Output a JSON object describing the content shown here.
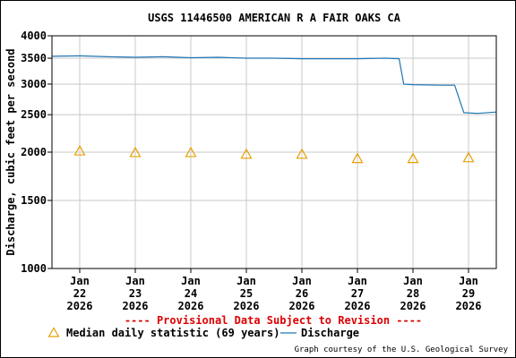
{
  "chart_data": {
    "type": "line",
    "title": "USGS 11446500 AMERICAN R A FAIR OAKS CA",
    "ylabel": "Discharge, cubic feet per second",
    "xlabel": "",
    "yscale": "log",
    "ylim": [
      1000,
      4000
    ],
    "y_ticks": [
      1000,
      1500,
      2000,
      2500,
      3000,
      3500,
      4000
    ],
    "y_tick_labels": [
      "1000",
      "1500",
      "2000",
      "2500",
      "3000",
      "3500",
      "4000"
    ],
    "x_range": [
      "2026-01-21T12:00",
      "2026-01-29T12:00"
    ],
    "x_ticks": [
      {
        "month": "Jan",
        "day": "22",
        "year": "2026"
      },
      {
        "month": "Jan",
        "day": "23",
        "year": "2026"
      },
      {
        "month": "Jan",
        "day": "24",
        "year": "2026"
      },
      {
        "month": "Jan",
        "day": "25",
        "year": "2026"
      },
      {
        "month": "Jan",
        "day": "26",
        "year": "2026"
      },
      {
        "month": "Jan",
        "day": "27",
        "year": "2026"
      },
      {
        "month": "Jan",
        "day": "28",
        "year": "2026"
      },
      {
        "month": "Jan",
        "day": "29",
        "year": "2026"
      }
    ],
    "grid": true,
    "series": [
      {
        "name": "Discharge",
        "color": "#1f77b4",
        "style": "line",
        "x": [
          "2026-01-21T12:00",
          "2026-01-22T00:00",
          "2026-01-22T12:00",
          "2026-01-23T00:00",
          "2026-01-23T12:00",
          "2026-01-24T00:00",
          "2026-01-24T12:00",
          "2026-01-25T00:00",
          "2026-01-25T12:00",
          "2026-01-26T00:00",
          "2026-01-26T12:00",
          "2026-01-27T00:00",
          "2026-01-27T12:00",
          "2026-01-27T18:00",
          "2026-01-27T20:00",
          "2026-01-28T00:00",
          "2026-01-28T12:00",
          "2026-01-28T18:00",
          "2026-01-28T22:00",
          "2026-01-29T04:00",
          "2026-01-29T12:00"
        ],
        "y": [
          3540,
          3550,
          3530,
          3520,
          3530,
          3510,
          3520,
          3500,
          3500,
          3490,
          3490,
          3490,
          3500,
          3490,
          3000,
          2990,
          2980,
          2980,
          2530,
          2520,
          2540
        ]
      },
      {
        "name": "Median daily statistic (69 years)",
        "color": "#e8a000",
        "style": "triangle",
        "x": [
          "2026-01-22T00:00",
          "2026-01-23T00:00",
          "2026-01-24T00:00",
          "2026-01-25T00:00",
          "2026-01-26T00:00",
          "2026-01-27T00:00",
          "2026-01-28T00:00",
          "2026-01-29T00:00"
        ],
        "y": [
          2010,
          1990,
          1990,
          1970,
          1970,
          1920,
          1920,
          1930
        ]
      }
    ],
    "legend": {
      "position": "bottom",
      "items": [
        {
          "label": "Median daily statistic (69 years)",
          "symbol": "triangle",
          "color": "#e8a000"
        },
        {
          "label": "Discharge",
          "symbol": "line",
          "color": "#1f77b4"
        }
      ]
    },
    "annotations": {
      "provisional": "---- Provisional Data Subject to Revision ----",
      "provisional_color": "#dd0000",
      "credit": "Graph courtesy of the U.S. Geological Survey"
    }
  }
}
